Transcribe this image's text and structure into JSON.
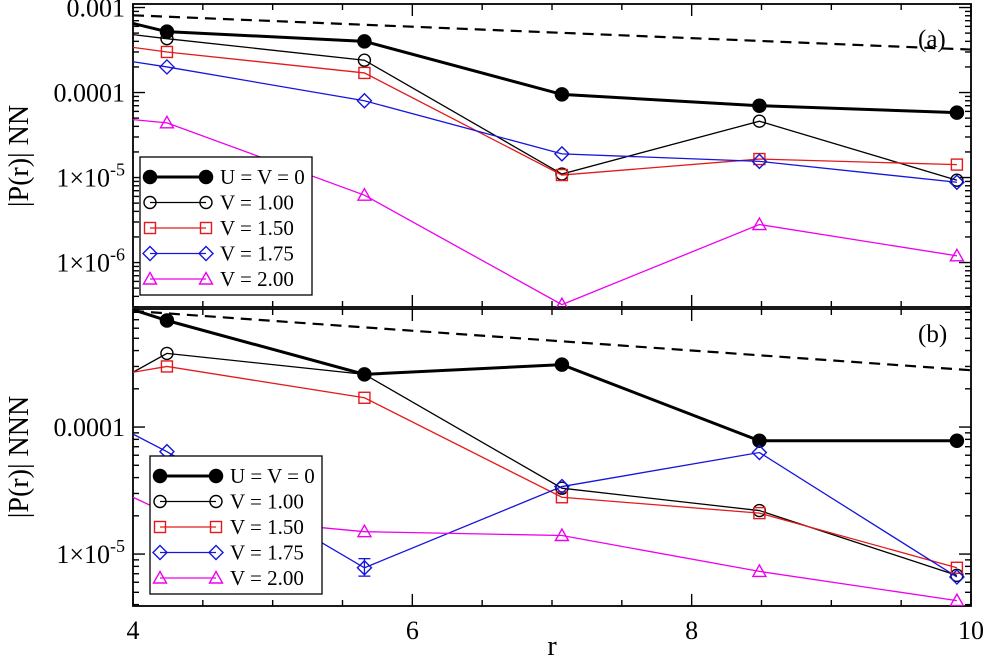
{
  "chart_data": [
    {
      "type": "line",
      "panel": "(a)",
      "ylabel": "|P(r)| NN",
      "xlabel": "",
      "yscale": "log",
      "ylim": [
        3e-07,
        0.0011
      ],
      "xlim": [
        4,
        10
      ],
      "grid": false,
      "legend_position": "bottom-left",
      "y_tick_labels": [
        {
          "value": 0.001,
          "label": "0.001",
          "sup": ""
        },
        {
          "value": 0.0001,
          "label": "0.0001",
          "sup": ""
        },
        {
          "value": 1e-05,
          "label": "1×10",
          "sup": "-5"
        },
        {
          "value": 1e-06,
          "label": "1×10",
          "sup": "-6"
        }
      ],
      "x": [
        4.243,
        5.657,
        7.071,
        8.485,
        9.899
      ],
      "series": [
        {
          "name": "U = V = 0",
          "color": "#000000",
          "marker": "filled-circle",
          "width": 3,
          "left_edge": 0.00065,
          "values": [
            0.00052,
            0.0004,
            9.5e-05,
            7e-05,
            5.8e-05
          ]
        },
        {
          "name": "V = 1.00",
          "color": "#000000",
          "marker": "open-circle",
          "width": 1.3,
          "left_edge": 0.00048,
          "values": [
            0.00043,
            0.00024,
            1.1e-05,
            4.6e-05,
            9.3e-06
          ]
        },
        {
          "name": "V = 1.50",
          "color": "#e31a1c",
          "marker": "square",
          "width": 1.3,
          "left_edge": 0.00034,
          "values": [
            0.0003,
            0.00017,
            1.07e-05,
            1.65e-05,
            1.42e-05
          ]
        },
        {
          "name": "V = 1.75",
          "color": "#1515dd",
          "marker": "diamond",
          "width": 1.3,
          "left_edge": 0.00023,
          "values": [
            0.0002,
            8e-05,
            1.9e-05,
            1.55e-05,
            8.8e-06
          ]
        },
        {
          "name": "V = 2.00",
          "color": "#ee00ee",
          "marker": "triangle",
          "width": 1.3,
          "left_edge": 4.8e-05,
          "values": [
            4.4e-05,
            6.2e-06,
            3.2e-07,
            2.8e-06,
            1.2e-06
          ]
        }
      ],
      "reference_line": {
        "style": "dashed",
        "color": "#000000",
        "from": [
          4,
          0.00081
        ],
        "to": [
          10,
          0.00032
        ]
      }
    },
    {
      "type": "line",
      "panel": "(b)",
      "ylabel": "|P(r)| NNN",
      "xlabel": "r",
      "yscale": "log",
      "ylim": [
        3.9e-06,
        0.00085
      ],
      "xlim": [
        4,
        10
      ],
      "x_ticks": [
        4,
        6,
        8,
        10
      ],
      "grid": false,
      "legend_position": "bottom-left",
      "y_tick_labels": [
        {
          "value": 0.0001,
          "label": "0.0001",
          "sup": ""
        },
        {
          "value": 1e-05,
          "label": "1×10",
          "sup": "-5"
        }
      ],
      "x": [
        4.243,
        5.657,
        7.071,
        8.485,
        9.899
      ],
      "series": [
        {
          "name": "U = V = 0",
          "color": "#000000",
          "marker": "filled-circle",
          "width": 3,
          "left_edge": 0.00084,
          "values": [
            0.00069,
            0.00026,
            0.00031,
            7.8e-05,
            7.8e-05
          ]
        },
        {
          "name": "V = 1.00",
          "color": "#000000",
          "marker": "open-circle",
          "width": 1.3,
          "left_edge": 0.00027,
          "values": [
            0.00038,
            0.00026,
            3.3e-05,
            2.2e-05,
            6.8e-06
          ]
        },
        {
          "name": "V = 1.50",
          "color": "#e31a1c",
          "marker": "square",
          "width": 1.3,
          "left_edge": 0.00027,
          "values": [
            0.0003,
            0.00017,
            2.8e-05,
            2.1e-05,
            7.8e-06
          ]
        },
        {
          "name": "V = 1.75",
          "color": "#1515dd",
          "marker": "diamond",
          "width": 1.3,
          "left_edge": 8.8e-05,
          "values": [
            6.4e-05,
            7.8e-06,
            3.4e-05,
            6.3e-05,
            6.6e-06
          ]
        },
        {
          "name": "V = 2.00",
          "color": "#ee00ee",
          "marker": "triangle",
          "width": 1.3,
          "left_edge": 2.8e-05,
          "values": [
            2.1e-05,
            1.5e-05,
            1.4e-05,
            7.3e-06,
            4.3e-06
          ]
        }
      ],
      "error_bars": [
        {
          "series": "V = 1.75",
          "x": 5.657,
          "low": 6.7e-06,
          "high": 9.2e-06
        }
      ],
      "reference_line": {
        "style": "dashed",
        "color": "#000000",
        "from": [
          4,
          0.00082
        ],
        "to": [
          10,
          0.00028
        ]
      }
    }
  ]
}
